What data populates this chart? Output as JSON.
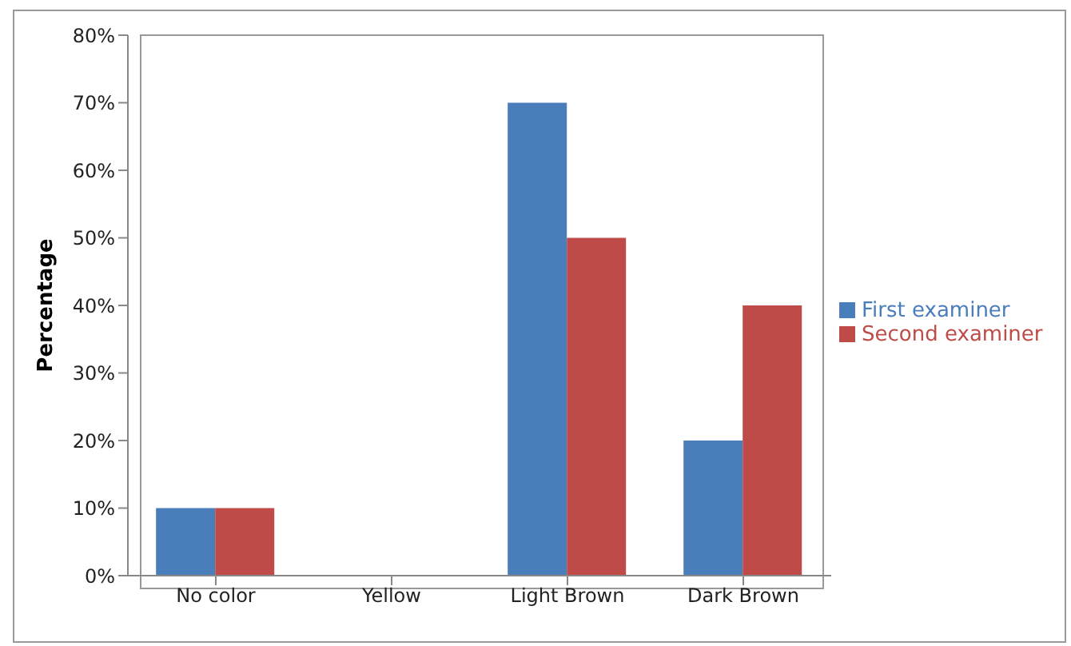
{
  "chart_data": {
    "type": "bar",
    "ylabel": "Percentage",
    "categories": [
      "No color",
      "Yellow",
      "Light Brown",
      "Dark Brown"
    ],
    "series": [
      {
        "name": "First examiner",
        "color": "#4a7ebb",
        "values": [
          10,
          0,
          70,
          20
        ]
      },
      {
        "name": "Second examiner",
        "color": "#be4b48",
        "values": [
          10,
          0,
          50,
          40
        ]
      }
    ],
    "ylim": [
      0,
      80
    ],
    "yticks": [
      {
        "value": 0,
        "label": "0%"
      },
      {
        "value": 10,
        "label": "10%"
      },
      {
        "value": 20,
        "label": "20%"
      },
      {
        "value": 30,
        "label": "30%"
      },
      {
        "value": 40,
        "label": "40%"
      },
      {
        "value": 50,
        "label": "50%"
      },
      {
        "value": 60,
        "label": "60%"
      },
      {
        "value": 70,
        "label": "70%"
      },
      {
        "value": 80,
        "label": "80%"
      }
    ],
    "grid": false,
    "legend": "right"
  }
}
